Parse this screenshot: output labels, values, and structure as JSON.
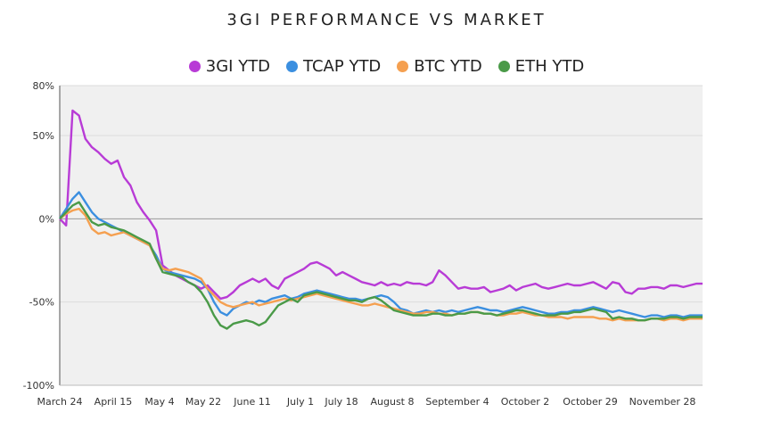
{
  "chart_data": {
    "type": "line",
    "title": "3GI PERFORMANCE VS MARKET",
    "xlabel": "",
    "ylabel": "",
    "ylim": [
      -100,
      80
    ],
    "yticks": [
      {
        "value": 80,
        "label": "80%"
      },
      {
        "value": 50,
        "label": "50%"
      },
      {
        "value": 0,
        "label": "0%"
      },
      {
        "value": -50,
        "label": "-50%"
      },
      {
        "value": -100,
        "label": "-100%"
      }
    ],
    "x_tick_labels": [
      "March 24",
      "April 15",
      "May 4",
      "May 22",
      "June 11",
      "July 1",
      "July 18",
      "August 8",
      "September 4",
      "October 2",
      "October 29",
      "November 28"
    ],
    "grid": "horizontal",
    "legend_position": "top",
    "x": [
      0,
      1,
      2,
      3,
      4,
      5,
      6,
      7,
      8,
      9,
      10,
      11,
      12,
      13,
      14,
      15,
      16,
      17,
      18,
      19,
      20,
      21,
      22,
      23,
      24,
      25,
      26,
      27,
      28,
      29,
      30,
      31,
      32,
      33,
      34,
      35,
      36,
      37,
      38,
      39,
      40,
      41,
      42,
      43,
      44,
      45,
      46,
      47,
      48,
      49,
      50,
      51,
      52,
      53,
      54,
      55,
      56,
      57,
      58,
      59,
      60,
      61,
      62,
      63,
      64,
      65,
      66,
      67,
      68,
      69,
      70,
      71,
      72,
      73,
      74,
      75,
      76,
      77,
      78,
      79,
      80,
      81,
      82,
      83,
      84,
      85,
      86,
      87,
      88,
      89,
      90,
      91,
      92,
      93,
      94,
      95,
      96,
      97,
      98,
      99,
      100
    ],
    "series": [
      {
        "name": "3GI YTD",
        "color": "#b83bd6",
        "values": [
          0,
          -4,
          65,
          62,
          48,
          43,
          40,
          36,
          33,
          35,
          25,
          20,
          10,
          4,
          -1,
          -7,
          -28,
          -31,
          -34,
          -36,
          -38,
          -40,
          -42,
          -40,
          -44,
          -48,
          -47,
          -44,
          -40,
          -38,
          -36,
          -38,
          -36,
          -40,
          -42,
          -36,
          -34,
          -32,
          -30,
          -27,
          -26,
          -28,
          -30,
          -34,
          -32,
          -34,
          -36,
          -38,
          -39,
          -40,
          -38,
          -40,
          -39,
          -40,
          -38,
          -39,
          -39,
          -40,
          -38,
          -31,
          -34,
          -38,
          -42,
          -41,
          -42,
          -42,
          -41,
          -44,
          -43,
          -42,
          -40,
          -43,
          -41,
          -40,
          -39,
          -41,
          -42,
          -41,
          -40,
          -39,
          -40,
          -40,
          -39,
          -38,
          -40,
          -42,
          -38,
          -39,
          -44,
          -45,
          -42,
          -42,
          -41,
          -41,
          -42,
          -40,
          -40,
          -41,
          -40,
          -39,
          -39
        ]
      },
      {
        "name": "TCAP YTD",
        "color": "#3b8fe0",
        "values": [
          0,
          6,
          12,
          16,
          10,
          4,
          0,
          -2,
          -4,
          -6,
          -8,
          -10,
          -12,
          -14,
          -16,
          -22,
          -30,
          -32,
          -33,
          -34,
          -35,
          -36,
          -38,
          -42,
          -50,
          -56,
          -58,
          -54,
          -52,
          -50,
          -51,
          -49,
          -50,
          -48,
          -47,
          -46,
          -48,
          -47,
          -45,
          -44,
          -43,
          -44,
          -45,
          -46,
          -47,
          -48,
          -48,
          -49,
          -48,
          -47,
          -46,
          -47,
          -50,
          -54,
          -55,
          -57,
          -56,
          -55,
          -56,
          -55,
          -56,
          -55,
          -56,
          -55,
          -54,
          -53,
          -54,
          -55,
          -55,
          -56,
          -55,
          -54,
          -53,
          -54,
          -55,
          -56,
          -57,
          -57,
          -56,
          -56,
          -55,
          -55,
          -54,
          -53,
          -54,
          -55,
          -56,
          -55,
          -56,
          -57,
          -58,
          -59,
          -58,
          -58,
          -59,
          -58,
          -58,
          -59,
          -58,
          -58,
          -58
        ]
      },
      {
        "name": "BTC YTD",
        "color": "#f5a050",
        "values": [
          0,
          3,
          5,
          6,
          2,
          -6,
          -9,
          -8,
          -10,
          -9,
          -8,
          -10,
          -12,
          -14,
          -16,
          -24,
          -30,
          -31,
          -30,
          -31,
          -32,
          -34,
          -36,
          -42,
          -46,
          -50,
          -52,
          -53,
          -52,
          -51,
          -50,
          -52,
          -51,
          -50,
          -49,
          -48,
          -49,
          -48,
          -47,
          -46,
          -45,
          -46,
          -47,
          -48,
          -49,
          -50,
          -51,
          -52,
          -52,
          -51,
          -52,
          -53,
          -54,
          -55,
          -56,
          -57,
          -57,
          -56,
          -56,
          -57,
          -57,
          -58,
          -57,
          -57,
          -56,
          -56,
          -57,
          -57,
          -58,
          -58,
          -57,
          -57,
          -56,
          -57,
          -58,
          -58,
          -59,
          -59,
          -59,
          -60,
          -59,
          -59,
          -59,
          -59,
          -60,
          -60,
          -61,
          -60,
          -61,
          -61,
          -61,
          -61,
          -60,
          -60,
          -61,
          -60,
          -60,
          -61,
          -60,
          -60,
          -60
        ]
      },
      {
        "name": "ETH YTD",
        "color": "#4a9a48",
        "values": [
          0,
          4,
          8,
          10,
          4,
          -2,
          -4,
          -3,
          -5,
          -6,
          -7,
          -9,
          -11,
          -13,
          -15,
          -24,
          -32,
          -33,
          -34,
          -35,
          -38,
          -40,
          -44,
          -50,
          -58,
          -64,
          -66,
          -63,
          -62,
          -61,
          -62,
          -64,
          -62,
          -57,
          -52,
          -50,
          -48,
          -50,
          -46,
          -45,
          -44,
          -45,
          -46,
          -47,
          -48,
          -49,
          -49,
          -50,
          -48,
          -47,
          -49,
          -52,
          -55,
          -56,
          -57,
          -58,
          -58,
          -58,
          -57,
          -57,
          -58,
          -58,
          -57,
          -57,
          -56,
          -56,
          -57,
          -57,
          -58,
          -57,
          -56,
          -55,
          -55,
          -56,
          -57,
          -58,
          -58,
          -58,
          -57,
          -57,
          -56,
          -56,
          -55,
          -54,
          -55,
          -56,
          -60,
          -59,
          -60,
          -60,
          -61,
          -61,
          -60,
          -60,
          -60,
          -59,
          -59,
          -60,
          -59,
          -59,
          -59
        ]
      }
    ]
  }
}
